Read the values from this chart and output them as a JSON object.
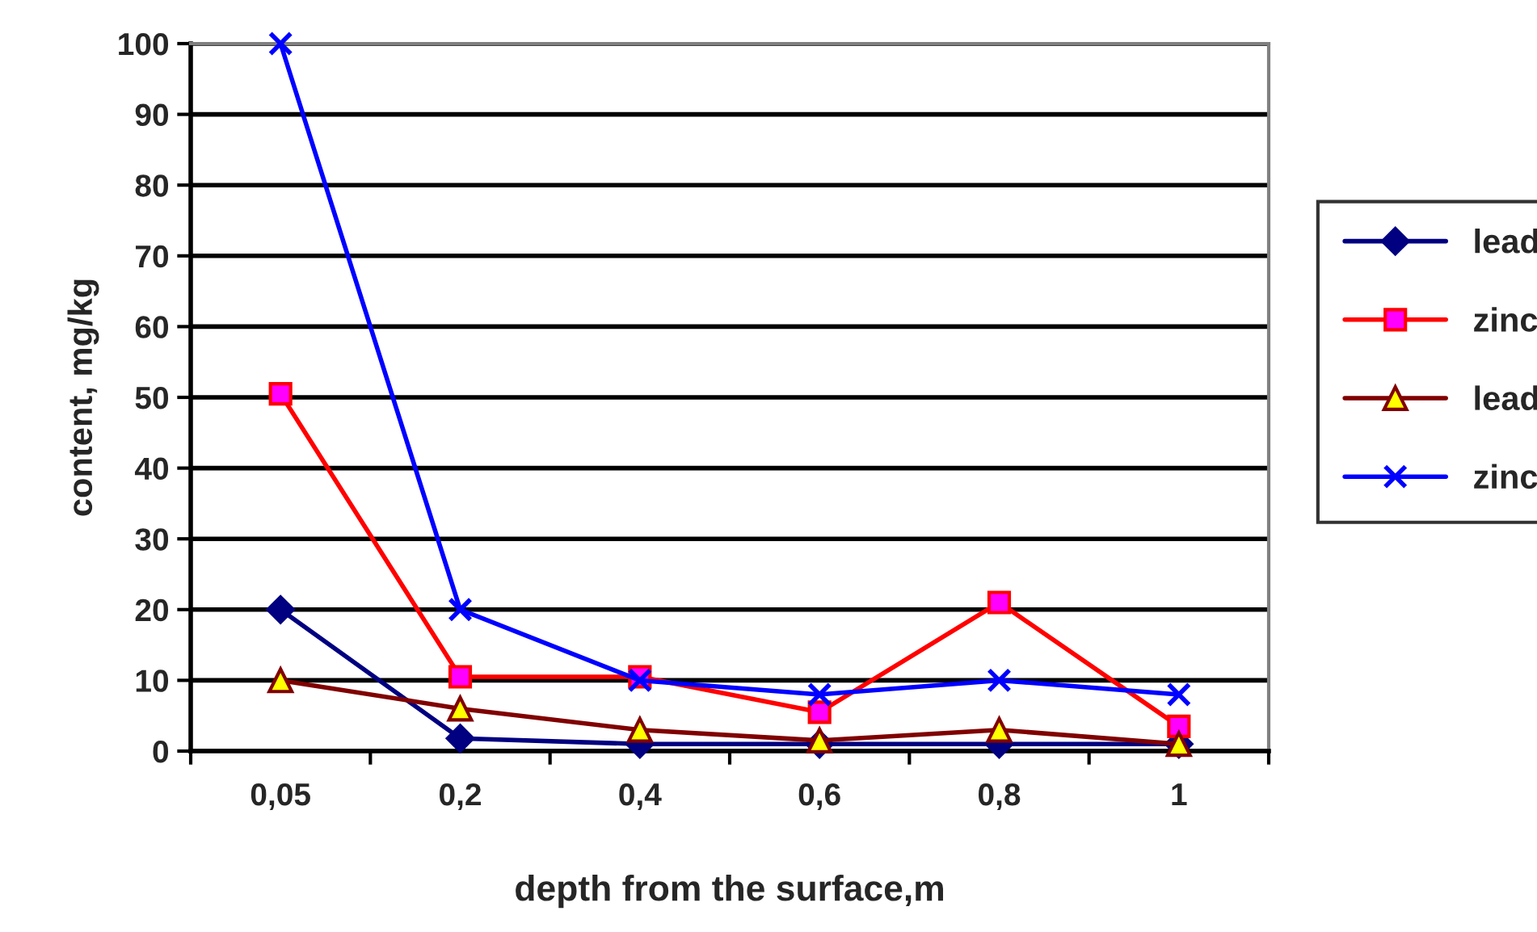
{
  "chart_data": {
    "type": "line",
    "xlabel": "depth from the surface,m",
    "ylabel": "content, mg/kg",
    "categories": [
      "0,05",
      "0,2",
      "0,4",
      "0,6",
      "0,8",
      "1"
    ],
    "series": [
      {
        "name": "lead",
        "color": "#000080",
        "marker": "diamond",
        "values": [
          20,
          1.8,
          1,
          1,
          1,
          1
        ]
      },
      {
        "name": "zinc",
        "color": "#ff0000",
        "marker": "square",
        "values": [
          50.5,
          10.5,
          10.5,
          5.5,
          21,
          3.5
        ]
      },
      {
        "name": "lead",
        "color": "#800000",
        "marker": "triangle",
        "values": [
          10,
          6,
          3,
          1.5,
          3,
          1
        ]
      },
      {
        "name": "zinc",
        "color": "#0000ff",
        "marker": "cross",
        "values": [
          100,
          20,
          10,
          8,
          10,
          8
        ]
      }
    ],
    "ylim": [
      0,
      100
    ],
    "yticks": [
      0,
      10,
      20,
      30,
      40,
      50,
      60,
      70,
      80,
      90,
      100
    ],
    "grid": "y",
    "legend": "right"
  }
}
